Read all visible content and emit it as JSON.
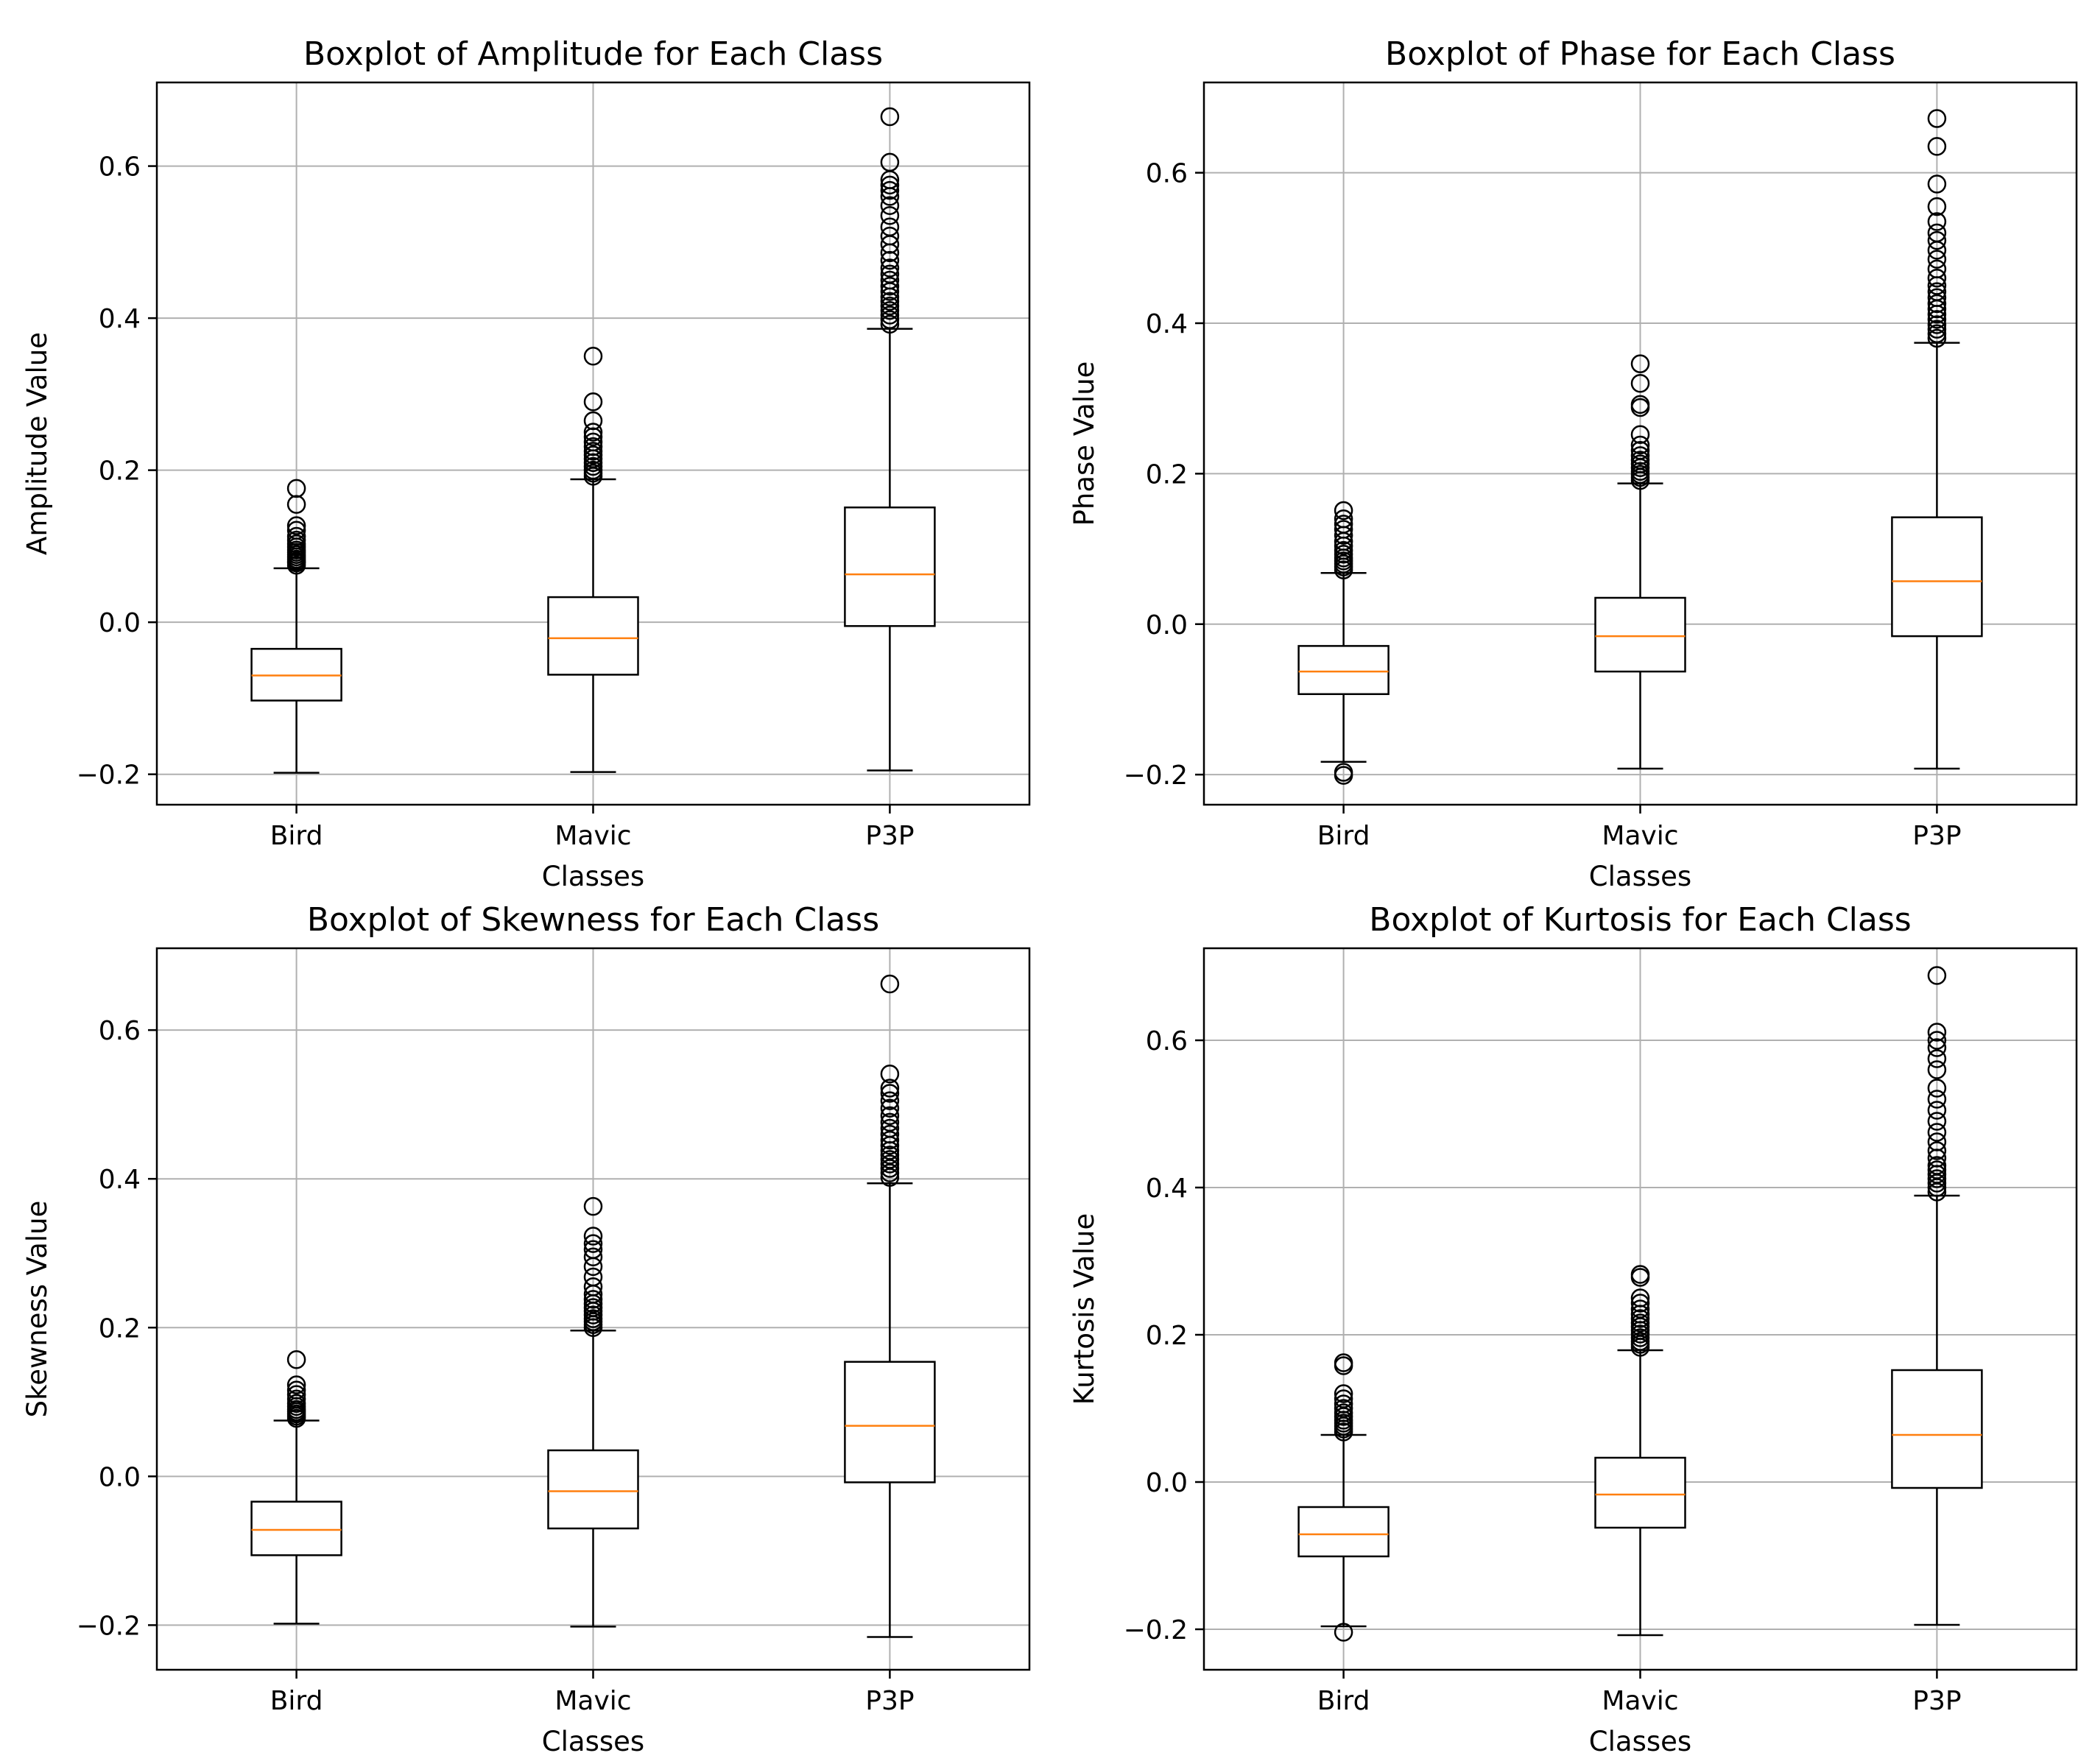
{
  "chart_data": [
    {
      "type": "boxplot",
      "title": "Boxplot of Amplitude for Each Class",
      "xlabel": "Classes",
      "ylabel": "Amplitude Value",
      "ylim": [
        -0.24,
        0.71
      ],
      "yticks": [
        -0.2,
        0.0,
        0.2,
        0.4,
        0.6
      ],
      "ytick_labels": [
        "−0.2",
        "0.0",
        "0.2",
        "0.4",
        "0.6"
      ],
      "grid": true,
      "categories": [
        "Bird",
        "Mavic",
        "P3P"
      ],
      "boxes": [
        {
          "name": "Bird",
          "whislo": -0.198,
          "q1": -0.103,
          "median": -0.07,
          "q3": -0.035,
          "whishi": 0.071,
          "fliers": [
            0.075,
            0.078,
            0.08,
            0.083,
            0.086,
            0.089,
            0.092,
            0.095,
            0.099,
            0.103,
            0.108,
            0.113,
            0.121,
            0.127,
            0.155,
            0.176
          ]
        },
        {
          "name": "Mavic",
          "whislo": -0.197,
          "q1": -0.069,
          "median": -0.021,
          "q3": 0.033,
          "whishi": 0.188,
          "fliers": [
            0.192,
            0.196,
            0.2,
            0.205,
            0.21,
            0.215,
            0.22,
            0.225,
            0.231,
            0.237,
            0.244,
            0.25,
            0.265,
            0.29,
            0.35
          ]
        },
        {
          "name": "P3P",
          "whislo": -0.195,
          "q1": -0.005,
          "median": 0.063,
          "q3": 0.151,
          "whishi": 0.386,
          "fliers": [
            0.392,
            0.398,
            0.404,
            0.41,
            0.416,
            0.422,
            0.428,
            0.435,
            0.442,
            0.45,
            0.458,
            0.466,
            0.476,
            0.486,
            0.497,
            0.508,
            0.52,
            0.535,
            0.548,
            0.56,
            0.568,
            0.575,
            0.582,
            0.605,
            0.665
          ]
        }
      ]
    },
    {
      "type": "boxplot",
      "title": "Boxplot of Phase for Each Class",
      "xlabel": "Classes",
      "ylabel": "Phase Value",
      "ylim": [
        -0.24,
        0.72
      ],
      "yticks": [
        -0.2,
        0.0,
        0.2,
        0.4,
        0.6
      ],
      "ytick_labels": [
        "−0.2",
        "0.0",
        "0.2",
        "0.4",
        "0.6"
      ],
      "grid": true,
      "categories": [
        "Bird",
        "Mavic",
        "P3P"
      ],
      "boxes": [
        {
          "name": "Bird",
          "whislo": -0.183,
          "q1": -0.093,
          "median": -0.063,
          "q3": -0.029,
          "whishi": 0.068,
          "fliers": [
            -0.197,
            -0.201,
            0.072,
            0.076,
            0.08,
            0.084,
            0.088,
            0.093,
            0.098,
            0.104,
            0.11,
            0.118,
            0.126,
            0.133,
            0.14,
            0.151
          ]
        },
        {
          "name": "Mavic",
          "whislo": -0.192,
          "q1": -0.063,
          "median": -0.016,
          "q3": 0.035,
          "whishi": 0.187,
          "fliers": [
            0.191,
            0.195,
            0.199,
            0.203,
            0.208,
            0.213,
            0.218,
            0.224,
            0.231,
            0.238,
            0.252,
            0.288,
            0.292,
            0.32,
            0.346
          ]
        },
        {
          "name": "P3P",
          "whislo": -0.192,
          "q1": -0.016,
          "median": 0.057,
          "q3": 0.142,
          "whishi": 0.374,
          "fliers": [
            0.38,
            0.386,
            0.392,
            0.398,
            0.405,
            0.412,
            0.419,
            0.426,
            0.434,
            0.442,
            0.45,
            0.46,
            0.472,
            0.485,
            0.497,
            0.51,
            0.52,
            0.535,
            0.555,
            0.585,
            0.635,
            0.672
          ]
        }
      ]
    },
    {
      "type": "boxplot",
      "title": "Boxplot of Skewness for Each Class",
      "xlabel": "Classes",
      "ylabel": "Skewness Value",
      "ylim": [
        -0.26,
        0.71
      ],
      "yticks": [
        -0.2,
        0.0,
        0.2,
        0.4,
        0.6
      ],
      "ytick_labels": [
        "−0.2",
        "0.0",
        "0.2",
        "0.4",
        "0.6"
      ],
      "grid": true,
      "categories": [
        "Bird",
        "Mavic",
        "P3P"
      ],
      "boxes": [
        {
          "name": "Bird",
          "whislo": -0.198,
          "q1": -0.106,
          "median": -0.072,
          "q3": -0.034,
          "whishi": 0.075,
          "fliers": [
            0.078,
            0.081,
            0.084,
            0.087,
            0.09,
            0.094,
            0.098,
            0.104,
            0.11,
            0.116,
            0.123,
            0.157
          ]
        },
        {
          "name": "Mavic",
          "whislo": -0.202,
          "q1": -0.07,
          "median": -0.02,
          "q3": 0.035,
          "whishi": 0.196,
          "fliers": [
            0.2,
            0.204,
            0.208,
            0.212,
            0.217,
            0.222,
            0.227,
            0.232,
            0.238,
            0.245,
            0.255,
            0.268,
            0.282,
            0.295,
            0.305,
            0.313,
            0.323,
            0.363
          ]
        },
        {
          "name": "P3P",
          "whislo": -0.216,
          "q1": -0.008,
          "median": 0.068,
          "q3": 0.154,
          "whishi": 0.394,
          "fliers": [
            0.402,
            0.408,
            0.414,
            0.42,
            0.426,
            0.432,
            0.438,
            0.445,
            0.452,
            0.46,
            0.468,
            0.476,
            0.485,
            0.495,
            0.505,
            0.515,
            0.522,
            0.541,
            0.662
          ]
        }
      ]
    },
    {
      "type": "boxplot",
      "title": "Boxplot of Kurtosis for Each Class",
      "xlabel": "Classes",
      "ylabel": "Kurtosis Value",
      "ylim": [
        -0.255,
        0.725
      ],
      "yticks": [
        -0.2,
        0.0,
        0.2,
        0.4,
        0.6
      ],
      "ytick_labels": [
        "−0.2",
        "0.0",
        "0.2",
        "0.4",
        "0.6"
      ],
      "grid": true,
      "categories": [
        "Bird",
        "Mavic",
        "P3P"
      ],
      "boxes": [
        {
          "name": "Bird",
          "whislo": -0.196,
          "q1": -0.101,
          "median": -0.071,
          "q3": -0.034,
          "whishi": 0.064,
          "fliers": [
            -0.204,
            0.068,
            0.072,
            0.076,
            0.08,
            0.084,
            0.089,
            0.094,
            0.1,
            0.106,
            0.113,
            0.12,
            0.158,
            0.162
          ]
        },
        {
          "name": "Mavic",
          "whislo": -0.208,
          "q1": -0.062,
          "median": -0.017,
          "q3": 0.033,
          "whishi": 0.179,
          "fliers": [
            0.183,
            0.187,
            0.191,
            0.196,
            0.201,
            0.206,
            0.211,
            0.216,
            0.222,
            0.228,
            0.235,
            0.243,
            0.25,
            0.278,
            0.282
          ]
        },
        {
          "name": "P3P",
          "whislo": -0.194,
          "q1": -0.008,
          "median": 0.064,
          "q3": 0.152,
          "whishi": 0.389,
          "fliers": [
            0.394,
            0.4,
            0.406,
            0.412,
            0.418,
            0.424,
            0.43,
            0.44,
            0.45,
            0.462,
            0.475,
            0.49,
            0.505,
            0.52,
            0.535,
            0.56,
            0.575,
            0.59,
            0.6,
            0.611,
            0.688
          ]
        }
      ]
    }
  ],
  "colors": {
    "median": "#ff7f0e",
    "grid": "#b0b0b0",
    "axes": "#000000",
    "box_face": "#ffffff"
  }
}
